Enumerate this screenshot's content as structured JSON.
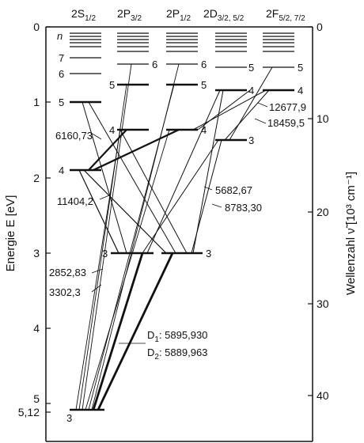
{
  "left_axis": {
    "title": "Energie E [eV]",
    "ticks": [
      {
        "value": 0,
        "label": "0"
      },
      {
        "value": 1,
        "label": "1"
      },
      {
        "value": 2,
        "label": "2"
      },
      {
        "value": 3,
        "label": "3"
      },
      {
        "value": 4,
        "label": "4"
      },
      {
        "value": 5,
        "label": "5"
      }
    ],
    "extra_label": {
      "value": 5.12,
      "label": "5,12"
    }
  },
  "right_axis": {
    "title": "Wellenzahl ν̃ [10³ cm⁻¹]",
    "ticks": [
      {
        "value": 0,
        "label": "0"
      },
      {
        "value": 10,
        "label": "10"
      },
      {
        "value": 20,
        "label": "20"
      },
      {
        "value": 30,
        "label": "30"
      },
      {
        "value": 40,
        "label": "40"
      }
    ]
  },
  "term_headers": [
    {
      "base": "2S",
      "sub": "1/2"
    },
    {
      "base": "2P",
      "sub": "3/2"
    },
    {
      "base": "2P",
      "sub": "1/2"
    },
    {
      "base": "2D",
      "sub": "3/2, 5/2"
    },
    {
      "base": "2F",
      "sub": "5/2, 7/2"
    }
  ],
  "level_labels": {
    "n": "n",
    "s": [
      "7",
      "6",
      "5",
      "4",
      "3"
    ],
    "p32": [
      "6",
      "5",
      "4",
      "3"
    ],
    "p12": [
      "6",
      "5",
      "4",
      "3"
    ],
    "d": [
      "5",
      "4",
      "3"
    ],
    "f": [
      "5",
      "4"
    ]
  },
  "wavelength_labels": [
    {
      "id": "w6160",
      "text": "6160,73"
    },
    {
      "id": "w11404",
      "text": "11404,2"
    },
    {
      "id": "w2852",
      "text": "2852,83"
    },
    {
      "id": "w3302",
      "text": "3302,3"
    },
    {
      "id": "w5682",
      "text": "5682,67"
    },
    {
      "id": "w8783",
      "text": "8783,30"
    },
    {
      "id": "w12677",
      "text": "12677,9"
    },
    {
      "id": "w18459",
      "text": "18459,5"
    }
  ],
  "d_lines": [
    {
      "name": "D",
      "sub": "1",
      "value": ": 5895,930"
    },
    {
      "name": "D",
      "sub": "2",
      "value": ": 5889,963"
    }
  ]
}
